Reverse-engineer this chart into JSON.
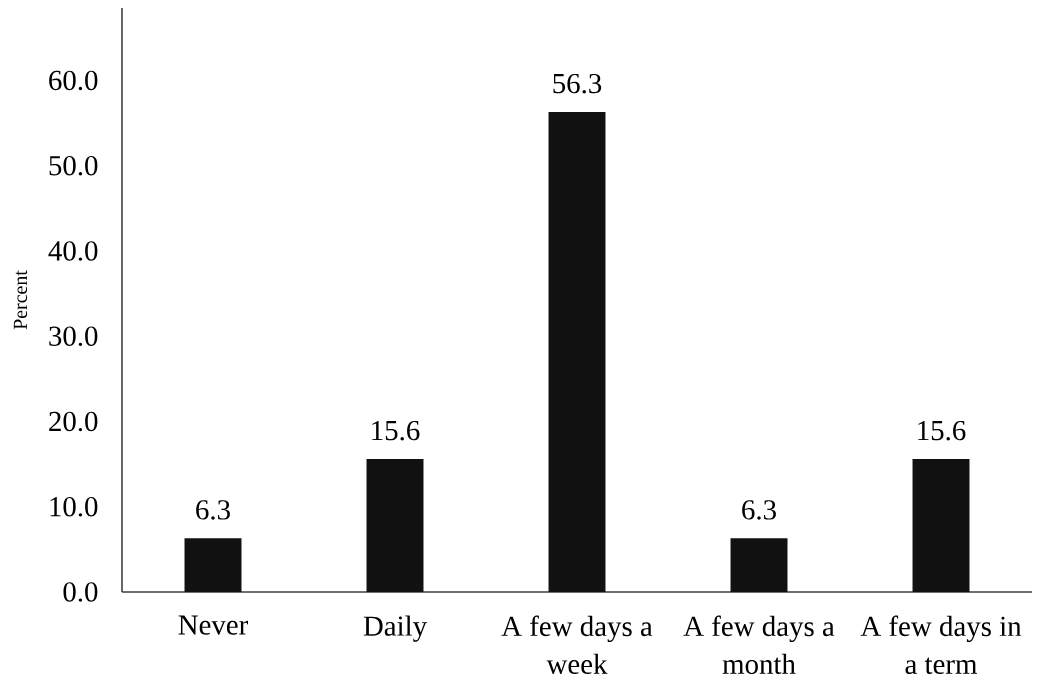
{
  "chart_data": {
    "type": "bar",
    "categories": [
      "Never",
      "Daily",
      "A few days a week",
      "A few days a month",
      "A few days in a term"
    ],
    "values": [
      6.3,
      15.6,
      56.3,
      6.3,
      15.6
    ],
    "color": "#111111",
    "ylabel": "Percent",
    "ylim": [
      0,
      68.5
    ],
    "yticks": [
      {
        "value": 0,
        "label": "0.0"
      },
      {
        "value": 10,
        "label": "10.0"
      },
      {
        "value": 20,
        "label": "20.0"
      },
      {
        "value": 30,
        "label": "30.0"
      },
      {
        "value": 40,
        "label": "40.0"
      },
      {
        "value": 50,
        "label": "50.0"
      },
      {
        "value": 60,
        "label": "60.0"
      }
    ],
    "data_labels": true
  }
}
